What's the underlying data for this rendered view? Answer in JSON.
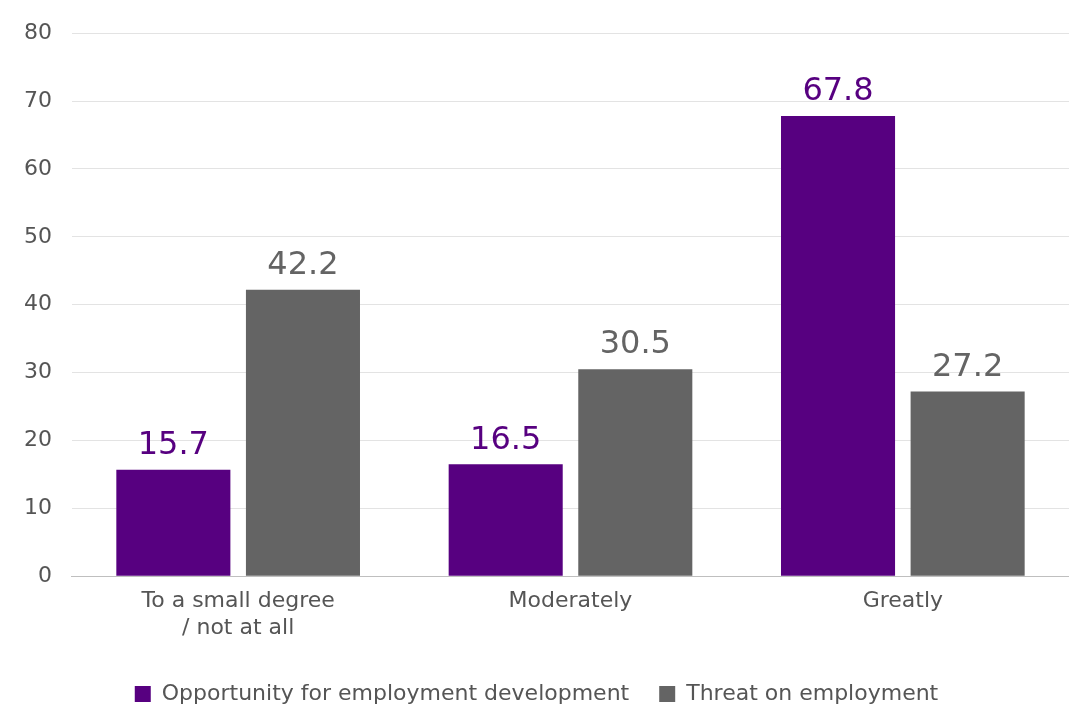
{
  "chart_data": {
    "type": "bar",
    "categories": [
      "To a small degree / not at all",
      "Moderately",
      "Greatly"
    ],
    "series": [
      {
        "name": "Opportunity for employment development",
        "color": "#570080",
        "values": [
          15.7,
          16.5,
          67.8
        ]
      },
      {
        "name": "Threat on employment",
        "color": "#646464",
        "values": [
          42.2,
          30.5,
          27.2
        ]
      }
    ],
    "ylim": [
      0,
      80
    ],
    "yticks": [
      0,
      10,
      20,
      30,
      40,
      50,
      60,
      70,
      80
    ],
    "grid": "y",
    "legend": "bottom",
    "data_labels": true
  }
}
